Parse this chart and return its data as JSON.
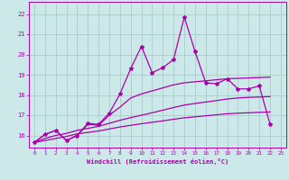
{
  "background_color": "#cce8e8",
  "grid_color": "#aacccc",
  "line_color": "#aa00aa",
  "xlabel": "Windchill (Refroidissement éolien,°C)",
  "xlim": [
    -0.5,
    23.5
  ],
  "ylim": [
    15.4,
    22.6
  ],
  "yticks": [
    16,
    17,
    18,
    19,
    20,
    21,
    22
  ],
  "xticks": [
    0,
    1,
    2,
    3,
    4,
    5,
    6,
    7,
    8,
    9,
    10,
    11,
    12,
    13,
    14,
    15,
    16,
    17,
    18,
    19,
    20,
    21,
    22,
    23
  ],
  "line_main_x": [
    0,
    1,
    2,
    3,
    4,
    5,
    6,
    7,
    8,
    9,
    10,
    11,
    12,
    13,
    14,
    15,
    16,
    17,
    18,
    19,
    20,
    21,
    22
  ],
  "line_main_y": [
    15.65,
    16.05,
    16.25,
    15.75,
    16.0,
    16.6,
    16.55,
    17.1,
    18.05,
    19.3,
    20.4,
    19.1,
    19.35,
    19.75,
    21.85,
    20.15,
    18.6,
    18.55,
    18.8,
    18.3,
    18.3,
    18.45,
    16.55
  ],
  "line2_x": [
    0,
    1,
    2,
    3,
    4,
    5,
    6,
    7,
    8,
    9,
    10,
    11,
    12,
    13,
    14,
    15,
    16,
    17,
    18,
    19,
    20,
    21,
    22
  ],
  "line2_y": [
    15.65,
    16.05,
    16.25,
    15.75,
    16.0,
    16.55,
    16.5,
    17.0,
    17.4,
    17.85,
    18.05,
    18.2,
    18.35,
    18.5,
    18.6,
    18.65,
    18.7,
    18.75,
    18.8,
    18.82,
    18.84,
    18.86,
    18.88
  ],
  "line3_x": [
    0,
    1,
    2,
    3,
    4,
    5,
    6,
    7,
    8,
    9,
    10,
    11,
    12,
    13,
    14,
    15,
    16,
    17,
    18,
    19,
    20,
    21,
    22
  ],
  "line3_y": [
    15.65,
    15.85,
    16.0,
    16.1,
    16.25,
    16.35,
    16.45,
    16.6,
    16.75,
    16.88,
    17.0,
    17.12,
    17.25,
    17.38,
    17.5,
    17.58,
    17.65,
    17.72,
    17.8,
    17.85,
    17.88,
    17.9,
    17.92
  ],
  "line4_x": [
    0,
    1,
    2,
    3,
    4,
    5,
    6,
    7,
    8,
    9,
    10,
    11,
    12,
    13,
    14,
    15,
    16,
    17,
    18,
    19,
    20,
    21,
    22
  ],
  "line4_y": [
    15.65,
    15.75,
    15.85,
    15.95,
    16.08,
    16.15,
    16.22,
    16.32,
    16.42,
    16.5,
    16.58,
    16.65,
    16.72,
    16.8,
    16.87,
    16.92,
    16.97,
    17.02,
    17.07,
    17.1,
    17.12,
    17.14,
    17.16
  ]
}
